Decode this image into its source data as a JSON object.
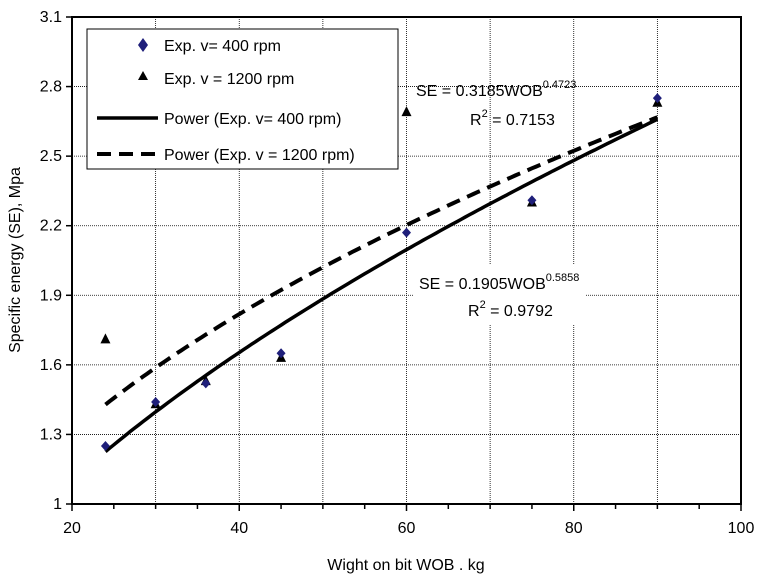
{
  "chart_data": {
    "type": "scatter",
    "title": "",
    "xlabel": "Wight on bit WOB . kg",
    "ylabel": "Specific energy (SE), Mpa",
    "xlim": [
      20,
      100
    ],
    "ylim": [
      1,
      3.1
    ],
    "xticks": [
      20,
      40,
      60,
      80,
      100
    ],
    "yticks": [
      1,
      1.3,
      1.6,
      1.9,
      2.2,
      2.5,
      2.8,
      3.1
    ],
    "xtick_labels": [
      "20",
      "40",
      "60",
      "80",
      "100"
    ],
    "ytick_labels": [
      "1",
      "1.3",
      "1.6",
      "1.9",
      "2.2",
      "2.5",
      "2.8",
      "3.1"
    ],
    "grid": true,
    "legend_position": "top-left",
    "series": [
      {
        "name": "Exp. v= 400 rpm",
        "marker": "diamond",
        "color": "#1f1f7a",
        "x": [
          24,
          30,
          36,
          45,
          60,
          75,
          90
        ],
        "y": [
          1.25,
          1.44,
          1.52,
          1.65,
          2.17,
          2.31,
          2.75
        ]
      },
      {
        "name": "Exp. v = 1200 rpm",
        "marker": "triangle",
        "color": "#000000",
        "x": [
          24,
          30,
          36,
          45,
          60,
          75,
          90
        ],
        "y": [
          1.71,
          1.43,
          1.53,
          1.63,
          2.69,
          2.3,
          2.73
        ]
      },
      {
        "name": "Power (Exp. v= 400 rpm)",
        "type": "line",
        "style": "solid",
        "fit": {
          "a": 0.1905,
          "b": 0.5858
        },
        "x_range": [
          24,
          90
        ]
      },
      {
        "name": "Power (Exp. v = 1200 rpm)",
        "type": "line",
        "style": "dashed",
        "fit": {
          "a": 0.3185,
          "b": 0.4723
        },
        "x_range": [
          24,
          90
        ]
      }
    ],
    "annotations": [
      {
        "prefix": "SE = 0.3185WOB",
        "exponent": "0.4723",
        "r2_prefix": "R",
        "r2_exp": "2",
        "r2_value": " = 0.7153"
      },
      {
        "prefix": "SE = 0.1905WOB",
        "exponent": "0.5858",
        "r2_prefix": "R",
        "r2_exp": "2",
        "r2_value": " = 0.9792"
      }
    ]
  }
}
